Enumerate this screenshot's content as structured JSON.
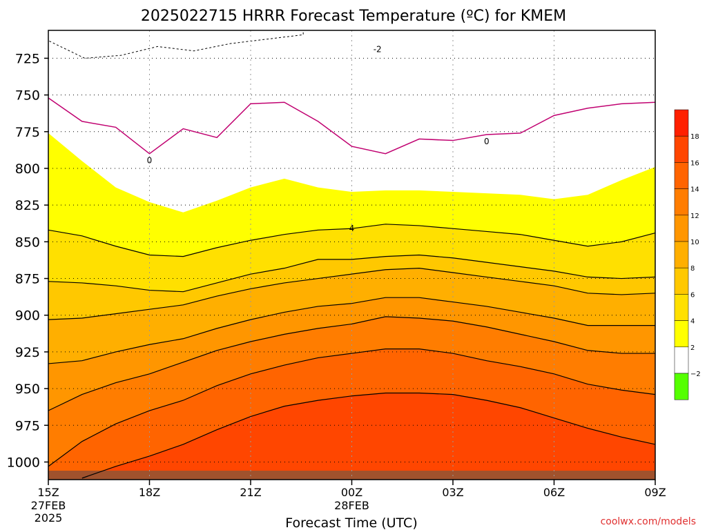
{
  "chart_data": {
    "type": "heatmap",
    "title": "2025022715 HRRR Forecast Temperature (ºC) for KMEM",
    "xlabel": "Forecast Time (UTC)",
    "ylabel": "",
    "credit": "coolwx.com/models",
    "x_ticks": [
      {
        "label": "15Z",
        "sub": [
          "27FEB",
          "2025"
        ],
        "hour": 0
      },
      {
        "label": "18Z",
        "sub": [],
        "hour": 3
      },
      {
        "label": "21Z",
        "sub": [],
        "hour": 6
      },
      {
        "label": "00Z",
        "sub": [
          "28FEB"
        ],
        "hour": 9
      },
      {
        "label": "03Z",
        "sub": [],
        "hour": 12
      },
      {
        "label": "06Z",
        "sub": [],
        "hour": 15
      },
      {
        "label": "09Z",
        "sub": [],
        "hour": 18
      }
    ],
    "y_ticks": [
      "725",
      "750",
      "775",
      "800",
      "825",
      "850",
      "875",
      "900",
      "925",
      "950",
      "975",
      "1000"
    ],
    "ylim_hPa": [
      706,
      1012
    ],
    "xlim_hours": [
      0,
      18
    ],
    "contour_interval": 2,
    "contours": [
      {
        "level": 4,
        "label": "4",
        "pressure": [
          842,
          846,
          853,
          859,
          860,
          854,
          849,
          845,
          842,
          841,
          838,
          839,
          841,
          843,
          845,
          849,
          853,
          850,
          844
        ]
      },
      {
        "level": 6,
        "label": "",
        "pressure": [
          877,
          878,
          880,
          883,
          884,
          878,
          872,
          868,
          862,
          862,
          860,
          859,
          861,
          864,
          867,
          870,
          874,
          875,
          874
        ]
      },
      {
        "level": 8,
        "label": "",
        "pressure": [
          903,
          902,
          899,
          896,
          893,
          887,
          882,
          878,
          875,
          872,
          869,
          868,
          871,
          874,
          877,
          880,
          885,
          886,
          885
        ]
      },
      {
        "level": 10,
        "label": "",
        "pressure": [
          933,
          931,
          925,
          920,
          916,
          909,
          903,
          898,
          894,
          892,
          888,
          888,
          891,
          894,
          898,
          902,
          907,
          907,
          907
        ]
      },
      {
        "level": 12,
        "label": "",
        "pressure": [
          965,
          954,
          946,
          940,
          932,
          924,
          918,
          913,
          909,
          906,
          901,
          902,
          904,
          908,
          913,
          918,
          924,
          926,
          926
        ]
      },
      {
        "level": 14,
        "label": "",
        "pressure": [
          1003,
          986,
          974,
          965,
          958,
          948,
          940,
          934,
          929,
          926,
          923,
          923,
          926,
          931,
          935,
          940,
          947,
          951,
          954
        ]
      },
      {
        "level": 16,
        "label": "",
        "pressure": [
          null,
          1011,
          1003,
          996,
          988,
          978,
          969,
          962,
          958,
          955,
          953,
          953,
          954,
          958,
          963,
          970,
          977,
          983,
          988
        ]
      }
    ],
    "zero_isotherm": {
      "level": 0,
      "label": "0",
      "pressure": [
        752,
        768,
        772,
        790,
        773,
        779,
        756,
        755,
        768,
        785,
        790,
        780,
        781,
        777,
        776,
        764,
        759,
        756,
        755
      ]
    },
    "freezing_region": {
      "level": -2,
      "label": "-2",
      "top_hPa": 706,
      "bottom_hPa": [
        713,
        725,
        723,
        717,
        720,
        715,
        712,
        709
      ]
    },
    "colorbar": [
      {
        "from": -4,
        "to": -2,
        "color": "#55ff00"
      },
      {
        "from": -2,
        "to": 2,
        "color": "#ffffff"
      },
      {
        "from": 2,
        "to": 4,
        "color": "#ffff00"
      },
      {
        "from": 4,
        "to": 6,
        "color": "#ffe000"
      },
      {
        "from": 6,
        "to": 8,
        "color": "#ffc800"
      },
      {
        "from": 8,
        "to": 10,
        "color": "#ffaf00"
      },
      {
        "from": 10,
        "to": 12,
        "color": "#ff9600"
      },
      {
        "from": 12,
        "to": 14,
        "color": "#ff7d00"
      },
      {
        "from": 14,
        "to": 16,
        "color": "#ff6400"
      },
      {
        "from": 16,
        "to": 18,
        "color": "#ff4600"
      },
      {
        "from": 18,
        "to": 20,
        "color": "#ff2000"
      }
    ],
    "colorbar_labels": [
      "−2",
      "2",
      "4",
      "6",
      "8",
      "10",
      "12",
      "14",
      "16",
      "18"
    ],
    "ground_color": "#a0522d",
    "grid": true
  }
}
